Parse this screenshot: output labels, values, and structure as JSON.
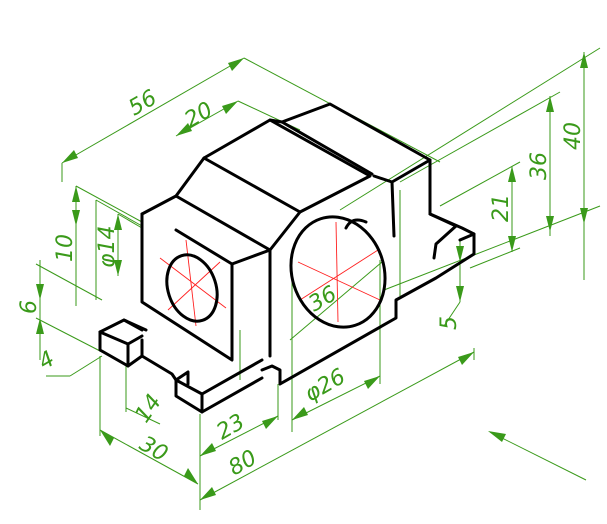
{
  "colors": {
    "object": "#000000",
    "dimension": "#3a9a1a",
    "centerline": "#ff2020",
    "background": "#ffffff"
  },
  "dims": {
    "d56": "56",
    "d20": "20",
    "d40": "40",
    "d36v": "36",
    "d21": "21",
    "d10": "10",
    "d14": "φ14",
    "d6": "6",
    "d4": "4",
    "d36c": "36",
    "d5": "5",
    "d26": "φ26",
    "d14b": "14",
    "d23": "23",
    "d30": "30",
    "d80": "80"
  },
  "icons": {
    "view_direction": "view-direction-arrow"
  }
}
